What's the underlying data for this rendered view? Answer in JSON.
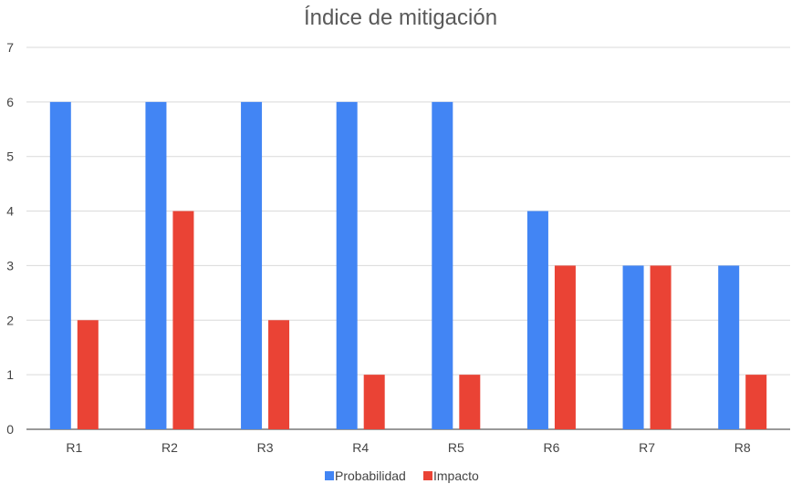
{
  "chart_data": {
    "type": "bar",
    "title": "Índice de mitigación",
    "xlabel": "",
    "ylabel": "",
    "categories": [
      "R1",
      "R2",
      "R3",
      "R4",
      "R5",
      "R6",
      "R7",
      "R8"
    ],
    "series": [
      {
        "name": "Probabilidad",
        "color": "#4285F4",
        "values": [
          6,
          6,
          6,
          6,
          6,
          4,
          3,
          3
        ]
      },
      {
        "name": "Impacto",
        "color": "#EA4335",
        "values": [
          2,
          4,
          2,
          1,
          1,
          3,
          3,
          1
        ]
      }
    ],
    "ylim": [
      0,
      7
    ],
    "yticks": [
      "0",
      "1",
      "2",
      "3",
      "4",
      "5",
      "6",
      "7"
    ],
    "grid": true,
    "legend_position": "bottom"
  }
}
